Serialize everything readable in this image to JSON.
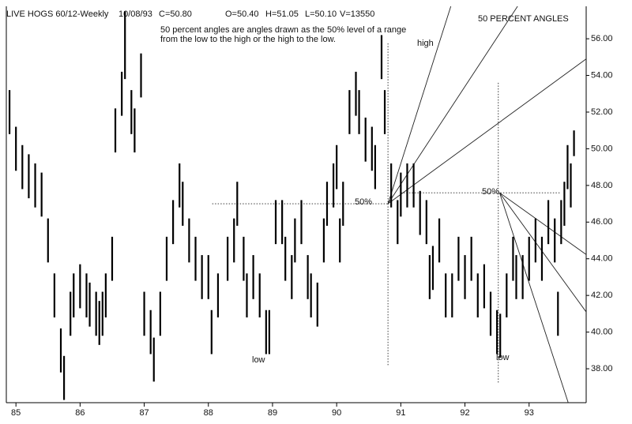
{
  "chart_data": {
    "type": "ohlc",
    "title": "LIVE HOGS 60/12-Weekly",
    "date": "10/08/93",
    "close_label": "C=50.80",
    "open_label": "O=50.40",
    "high_label": "H=51.05",
    "low_label": "L=50.10",
    "volume_label": "V=13550",
    "note_lines": [
      "50 percent angles are angles drawn as the 50% level of a range",
      "from the low to the high or the high to the low."
    ],
    "subtitle": "50 PERCENT ANGLES",
    "annotations": [
      "high",
      "low",
      "low",
      "50%",
      "50%"
    ],
    "xlim": [
      84.85,
      93.89
    ],
    "xticks": [
      85,
      86,
      87,
      88,
      89,
      90,
      91,
      92,
      93
    ],
    "ylim": [
      36.15,
      57.77
    ],
    "yticks": [
      {
        "value": 38,
        "label": "38.00"
      },
      {
        "value": 40,
        "label": "40.00"
      },
      {
        "value": 42,
        "label": "42.00"
      },
      {
        "value": 44,
        "label": "44.00"
      },
      {
        "value": 46,
        "label": "46.00"
      },
      {
        "value": 48,
        "label": "48.00"
      },
      {
        "value": 50,
        "label": "50.00"
      },
      {
        "value": 52,
        "label": "52.00"
      },
      {
        "value": 54,
        "label": "54.00"
      },
      {
        "value": 56,
        "label": "56.00"
      }
    ],
    "series": [
      {
        "color": "#000000",
        "x": [
          84.9,
          85.0,
          85.1,
          85.2,
          85.3,
          85.4,
          85.5,
          85.6,
          85.7,
          85.75,
          85.85,
          85.9,
          86.0,
          86.1,
          86.15,
          86.25,
          86.3,
          86.35,
          86.4,
          86.5,
          86.55,
          86.65,
          86.7,
          86.8,
          86.85,
          86.95,
          87.0,
          87.1,
          87.15,
          87.25,
          87.35,
          87.45,
          87.55,
          87.6,
          87.7,
          87.8,
          87.9,
          88.0,
          88.05,
          88.15,
          88.3,
          88.4,
          88.45,
          88.55,
          88.6,
          88.7,
          88.8,
          88.9,
          88.95,
          89.05,
          89.15,
          89.2,
          89.3,
          89.35,
          89.45,
          89.55,
          89.6,
          89.7,
          89.8,
          89.85,
          89.95,
          90.0,
          90.05,
          90.1,
          90.2,
          90.3,
          90.35,
          90.45,
          90.55,
          90.6,
          90.7,
          90.75,
          90.85,
          90.95,
          91.0,
          91.1,
          91.2,
          91.3,
          91.4,
          91.45,
          91.5,
          91.6,
          91.7,
          91.8,
          91.9,
          92.0,
          92.1,
          92.2,
          92.3,
          92.4,
          92.5,
          92.55,
          92.65,
          92.75,
          92.8,
          92.9,
          93.0,
          93.1,
          93.2,
          93.3,
          93.4,
          93.45,
          93.5,
          93.55,
          93.6,
          93.65,
          93.7
        ],
        "high": [
          53.2,
          51.2,
          50.2,
          49.7,
          49.2,
          48.7,
          46.2,
          43.2,
          40.2,
          38.7,
          42.2,
          43.2,
          43.7,
          43.2,
          42.7,
          42.2,
          41.7,
          42.2,
          43.2,
          45.2,
          52.2,
          54.2,
          57.5,
          53.2,
          52.2,
          55.2,
          42.2,
          41.2,
          39.7,
          42.2,
          45.2,
          47.2,
          49.2,
          48.2,
          46.2,
          45.2,
          44.2,
          44.2,
          41.2,
          43.2,
          45.2,
          46.2,
          48.2,
          45.2,
          43.2,
          44.2,
          43.2,
          41.2,
          41.2,
          47.2,
          47.2,
          45.2,
          44.2,
          46.2,
          47.2,
          44.2,
          43.2,
          42.7,
          46.2,
          48.2,
          49.2,
          50.2,
          46.2,
          48.2,
          53.2,
          54.2,
          53.2,
          51.7,
          51.2,
          50.2,
          56.2,
          53.2,
          49.2,
          47.2,
          48.7,
          49.2,
          49.2,
          47.7,
          47.2,
          44.2,
          44.7,
          46.2,
          43.2,
          43.2,
          45.2,
          44.2,
          45.2,
          43.2,
          43.7,
          42.2,
          41.2,
          41.0,
          43.2,
          45.2,
          44.2,
          44.2,
          45.2,
          46.2,
          45.2,
          47.2,
          46.2,
          42.2,
          47.2,
          48.2,
          50.2,
          49.2,
          51.0
        ],
        "low": [
          50.8,
          48.8,
          47.8,
          47.3,
          46.8,
          46.3,
          43.8,
          40.8,
          37.8,
          36.3,
          39.8,
          40.8,
          41.3,
          40.8,
          40.3,
          39.8,
          39.3,
          39.8,
          40.8,
          42.8,
          49.8,
          51.8,
          53.8,
          50.8,
          49.8,
          52.8,
          39.8,
          38.8,
          37.3,
          39.8,
          42.8,
          44.8,
          46.8,
          45.8,
          43.8,
          42.8,
          41.8,
          41.8,
          38.8,
          40.8,
          42.8,
          43.8,
          45.8,
          42.8,
          40.8,
          41.8,
          40.8,
          38.8,
          38.8,
          44.8,
          44.8,
          42.8,
          41.8,
          43.8,
          44.8,
          41.8,
          40.8,
          40.3,
          43.8,
          45.8,
          46.8,
          47.8,
          43.8,
          45.8,
          50.8,
          51.8,
          50.8,
          49.3,
          48.8,
          47.8,
          53.8,
          50.8,
          46.8,
          44.8,
          46.3,
          46.8,
          46.8,
          45.3,
          44.8,
          41.8,
          42.3,
          43.8,
          40.8,
          40.8,
          42.8,
          41.8,
          42.8,
          40.8,
          41.3,
          39.8,
          38.8,
          38.6,
          40.8,
          42.8,
          41.8,
          41.8,
          42.8,
          43.8,
          42.8,
          44.8,
          43.8,
          39.8,
          44.8,
          45.8,
          47.8,
          46.8,
          49.6
        ]
      }
    ],
    "annotation_lines": [
      {
        "style": "dotted",
        "x": [
          88.06,
          90.8
        ],
        "y": [
          47.0,
          47.0
        ]
      },
      {
        "style": "dotted",
        "x": [
          90.8,
          90.8
        ],
        "y": [
          55.75,
          38.2
        ]
      },
      {
        "style": "solid",
        "x": [
          90.8,
          91.78
        ],
        "y": [
          47.0,
          57.77
        ]
      },
      {
        "style": "solid",
        "x": [
          90.8,
          92.82
        ],
        "y": [
          47.0,
          57.77
        ]
      },
      {
        "style": "solid",
        "x": [
          90.8,
          93.89
        ],
        "y": [
          47.0,
          54.9
        ]
      },
      {
        "style": "dotted",
        "x": [
          91.0,
          93.5
        ],
        "y": [
          47.6,
          47.6
        ]
      },
      {
        "style": "dotted",
        "x": [
          92.52,
          92.52
        ],
        "y": [
          53.6,
          37.2
        ]
      },
      {
        "style": "solid",
        "x": [
          92.54,
          93.89
        ],
        "y": [
          47.6,
          44.23
        ]
      },
      {
        "style": "solid",
        "x": [
          92.54,
          93.89
        ],
        "y": [
          47.6,
          41.1
        ]
      },
      {
        "style": "solid",
        "x": [
          92.54,
          93.61
        ],
        "y": [
          47.6,
          36.15
        ]
      }
    ]
  }
}
